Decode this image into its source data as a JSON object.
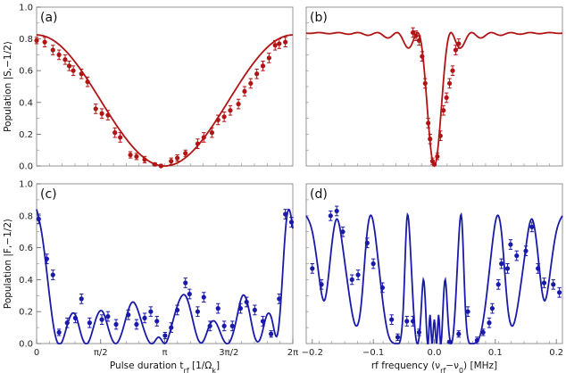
{
  "colors": {
    "red": "#b01414",
    "blue": "#1a1aa8"
  },
  "chart_data": [
    {
      "panel": "(a)",
      "type": "line",
      "ylim": [
        0.0,
        1.0
      ],
      "xlim": [
        0.0,
        6.2832
      ],
      "yticks": [
        {
          "v": 0.0,
          "label": "0.0"
        },
        {
          "v": 0.2,
          "label": "0.2"
        },
        {
          "v": 0.4,
          "label": "0.4"
        },
        {
          "v": 0.6,
          "label": "0.6"
        },
        {
          "v": 0.8,
          "label": "0.8"
        },
        {
          "v": 1.0,
          "label": "1.0"
        }
      ],
      "xticks": [],
      "ylabel": "Population  |S,−1/2⟩",
      "xlabel": "",
      "color": "red",
      "curve": {
        "model": "rabi_a",
        "steps": 200
      },
      "points": [
        {
          "x": 0.0,
          "y": 0.79,
          "e": 0.02
        },
        {
          "x": 0.2,
          "y": 0.78,
          "e": 0.03
        },
        {
          "x": 0.4,
          "y": 0.73,
          "e": 0.03
        },
        {
          "x": 0.55,
          "y": 0.7,
          "e": 0.03
        },
        {
          "x": 0.7,
          "y": 0.67,
          "e": 0.03
        },
        {
          "x": 0.8,
          "y": 0.63,
          "e": 0.03
        },
        {
          "x": 0.9,
          "y": 0.6,
          "e": 0.03
        },
        {
          "x": 1.1,
          "y": 0.58,
          "e": 0.03
        },
        {
          "x": 1.25,
          "y": 0.53,
          "e": 0.03
        },
        {
          "x": 1.45,
          "y": 0.36,
          "e": 0.03
        },
        {
          "x": 1.6,
          "y": 0.33,
          "e": 0.03
        },
        {
          "x": 1.75,
          "y": 0.32,
          "e": 0.03
        },
        {
          "x": 1.92,
          "y": 0.21,
          "e": 0.03
        },
        {
          "x": 2.05,
          "y": 0.18,
          "e": 0.03
        },
        {
          "x": 2.3,
          "y": 0.07,
          "e": 0.02
        },
        {
          "x": 2.45,
          "y": 0.06,
          "e": 0.02
        },
        {
          "x": 2.65,
          "y": 0.04,
          "e": 0.02
        },
        {
          "x": 2.9,
          "y": 0.01,
          "e": 0.01
        },
        {
          "x": 3.05,
          "y": 0.0,
          "e": 0.01
        },
        {
          "x": 3.3,
          "y": 0.03,
          "e": 0.02
        },
        {
          "x": 3.45,
          "y": 0.05,
          "e": 0.02
        },
        {
          "x": 3.65,
          "y": 0.08,
          "e": 0.02
        },
        {
          "x": 3.95,
          "y": 0.14,
          "e": 0.03
        },
        {
          "x": 4.1,
          "y": 0.18,
          "e": 0.03
        },
        {
          "x": 4.3,
          "y": 0.21,
          "e": 0.03
        },
        {
          "x": 4.45,
          "y": 0.29,
          "e": 0.03
        },
        {
          "x": 4.6,
          "y": 0.31,
          "e": 0.03
        },
        {
          "x": 4.75,
          "y": 0.35,
          "e": 0.03
        },
        {
          "x": 4.95,
          "y": 0.39,
          "e": 0.03
        },
        {
          "x": 5.1,
          "y": 0.47,
          "e": 0.03
        },
        {
          "x": 5.25,
          "y": 0.52,
          "e": 0.03
        },
        {
          "x": 5.4,
          "y": 0.58,
          "e": 0.03
        },
        {
          "x": 5.55,
          "y": 0.63,
          "e": 0.03
        },
        {
          "x": 5.7,
          "y": 0.68,
          "e": 0.03
        },
        {
          "x": 5.85,
          "y": 0.76,
          "e": 0.03
        },
        {
          "x": 5.95,
          "y": 0.77,
          "e": 0.03
        },
        {
          "x": 6.1,
          "y": 0.78,
          "e": 0.03
        }
      ]
    },
    {
      "panel": "(b)",
      "type": "line",
      "ylim": [
        0.0,
        1.0
      ],
      "xlim": [
        -0.21,
        0.21
      ],
      "yticks": [],
      "xticks": [],
      "ylabel": "",
      "xlabel": "",
      "color": "red",
      "curve": {
        "model": "rabi_b",
        "steps": 300
      },
      "points": [
        {
          "x": -0.035,
          "y": 0.84,
          "e": 0.03
        },
        {
          "x": -0.03,
          "y": 0.82,
          "e": 0.03
        },
        {
          "x": -0.025,
          "y": 0.79,
          "e": 0.03
        },
        {
          "x": -0.02,
          "y": 0.69,
          "e": 0.03
        },
        {
          "x": -0.015,
          "y": 0.52,
          "e": 0.03
        },
        {
          "x": -0.01,
          "y": 0.27,
          "e": 0.03
        },
        {
          "x": -0.007,
          "y": 0.17,
          "e": 0.03
        },
        {
          "x": -0.003,
          "y": 0.03,
          "e": 0.02
        },
        {
          "x": 0.0,
          "y": 0.01,
          "e": 0.01
        },
        {
          "x": 0.005,
          "y": 0.06,
          "e": 0.02
        },
        {
          "x": 0.01,
          "y": 0.19,
          "e": 0.03
        },
        {
          "x": 0.015,
          "y": 0.35,
          "e": 0.03
        },
        {
          "x": 0.02,
          "y": 0.43,
          "e": 0.03
        },
        {
          "x": 0.025,
          "y": 0.52,
          "e": 0.03
        },
        {
          "x": 0.03,
          "y": 0.6,
          "e": 0.03
        },
        {
          "x": 0.035,
          "y": 0.73,
          "e": 0.03
        },
        {
          "x": 0.04,
          "y": 0.77,
          "e": 0.03
        }
      ]
    },
    {
      "panel": "(c)",
      "type": "line",
      "ylim": [
        0.0,
        1.0
      ],
      "xlim": [
        0.0,
        6.2832
      ],
      "yticks": [
        {
          "v": 0.0,
          "label": "0.0"
        },
        {
          "v": 0.2,
          "label": "0.2"
        },
        {
          "v": 0.4,
          "label": "0.4"
        },
        {
          "v": 0.6,
          "label": "0.6"
        },
        {
          "v": 0.8,
          "label": "0.8"
        },
        {
          "v": 1.0,
          "label": "1.0"
        }
      ],
      "xticks": [
        {
          "v": 0.0,
          "label": "0"
        },
        {
          "v": 1.5708,
          "label": "π/2"
        },
        {
          "v": 3.1416,
          "label": "π"
        },
        {
          "v": 4.7124,
          "label": "3π/2"
        },
        {
          "v": 6.2832,
          "label": "2π"
        }
      ],
      "ylabel": "Population  |F,−1/2⟩",
      "xlabel": "Pulse duration t_rf [1/Ω_k]",
      "color": "blue",
      "curve": {
        "model": "spline_c",
        "steps": 300
      },
      "points": [
        {
          "x": 0.05,
          "y": 0.78,
          "e": 0.03
        },
        {
          "x": 0.25,
          "y": 0.53,
          "e": 0.03
        },
        {
          "x": 0.4,
          "y": 0.43,
          "e": 0.03
        },
        {
          "x": 0.55,
          "y": 0.07,
          "e": 0.02
        },
        {
          "x": 0.75,
          "y": 0.13,
          "e": 0.03
        },
        {
          "x": 0.95,
          "y": 0.16,
          "e": 0.03
        },
        {
          "x": 1.1,
          "y": 0.28,
          "e": 0.03
        },
        {
          "x": 1.3,
          "y": 0.13,
          "e": 0.03
        },
        {
          "x": 1.6,
          "y": 0.15,
          "e": 0.03
        },
        {
          "x": 1.75,
          "y": 0.17,
          "e": 0.03
        },
        {
          "x": 1.95,
          "y": 0.12,
          "e": 0.03
        },
        {
          "x": 2.25,
          "y": 0.18,
          "e": 0.03
        },
        {
          "x": 2.45,
          "y": 0.12,
          "e": 0.03
        },
        {
          "x": 2.65,
          "y": 0.16,
          "e": 0.03
        },
        {
          "x": 2.8,
          "y": 0.2,
          "e": 0.03
        },
        {
          "x": 2.95,
          "y": 0.14,
          "e": 0.03
        },
        {
          "x": 3.15,
          "y": 0.05,
          "e": 0.02
        },
        {
          "x": 3.3,
          "y": 0.1,
          "e": 0.03
        },
        {
          "x": 3.45,
          "y": 0.21,
          "e": 0.03
        },
        {
          "x": 3.65,
          "y": 0.38,
          "e": 0.03
        },
        {
          "x": 3.75,
          "y": 0.31,
          "e": 0.03
        },
        {
          "x": 3.95,
          "y": 0.2,
          "e": 0.03
        },
        {
          "x": 4.1,
          "y": 0.29,
          "e": 0.03
        },
        {
          "x": 4.25,
          "y": 0.11,
          "e": 0.03
        },
        {
          "x": 4.45,
          "y": 0.22,
          "e": 0.03
        },
        {
          "x": 4.6,
          "y": 0.11,
          "e": 0.03
        },
        {
          "x": 4.8,
          "y": 0.11,
          "e": 0.03
        },
        {
          "x": 5.0,
          "y": 0.22,
          "e": 0.03
        },
        {
          "x": 5.15,
          "y": 0.26,
          "e": 0.03
        },
        {
          "x": 5.35,
          "y": 0.21,
          "e": 0.03
        },
        {
          "x": 5.55,
          "y": 0.14,
          "e": 0.03
        },
        {
          "x": 5.75,
          "y": 0.06,
          "e": 0.02
        },
        {
          "x": 5.95,
          "y": 0.28,
          "e": 0.03
        },
        {
          "x": 6.1,
          "y": 0.81,
          "e": 0.03
        },
        {
          "x": 6.25,
          "y": 0.76,
          "e": 0.03
        }
      ]
    },
    {
      "panel": "(d)",
      "type": "line",
      "ylim": [
        0.0,
        1.0
      ],
      "xlim": [
        -0.21,
        0.21
      ],
      "yticks": [],
      "xticks": [
        {
          "v": -0.2,
          "label": "−0.2"
        },
        {
          "v": -0.1,
          "label": "−0.1"
        },
        {
          "v": 0.0,
          "label": "0.0"
        },
        {
          "v": 0.1,
          "label": "0.1"
        },
        {
          "v": 0.2,
          "label": "0.2"
        }
      ],
      "ylabel": "",
      "xlabel": "rf frequency (ν_rf−ν_0) [MHz]",
      "color": "blue",
      "curve": {
        "model": "spline_d",
        "steps": 420
      },
      "points": [
        {
          "x": -0.2,
          "y": 0.47,
          "e": 0.03
        },
        {
          "x": -0.185,
          "y": 0.37,
          "e": 0.03
        },
        {
          "x": -0.17,
          "y": 0.8,
          "e": 0.03
        },
        {
          "x": -0.16,
          "y": 0.83,
          "e": 0.03
        },
        {
          "x": -0.15,
          "y": 0.7,
          "e": 0.03
        },
        {
          "x": -0.135,
          "y": 0.4,
          "e": 0.03
        },
        {
          "x": -0.125,
          "y": 0.43,
          "e": 0.03
        },
        {
          "x": -0.11,
          "y": 0.63,
          "e": 0.03
        },
        {
          "x": -0.1,
          "y": 0.5,
          "e": 0.03
        },
        {
          "x": -0.085,
          "y": 0.35,
          "e": 0.03
        },
        {
          "x": -0.07,
          "y": 0.15,
          "e": 0.03
        },
        {
          "x": -0.06,
          "y": 0.04,
          "e": 0.02
        },
        {
          "x": -0.045,
          "y": 0.14,
          "e": 0.03
        },
        {
          "x": -0.035,
          "y": 0.14,
          "e": 0.03
        },
        {
          "x": -0.025,
          "y": 0.07,
          "e": 0.02
        },
        {
          "x": 0.025,
          "y": 0.01,
          "e": 0.01
        },
        {
          "x": 0.04,
          "y": 0.06,
          "e": 0.02
        },
        {
          "x": 0.055,
          "y": 0.2,
          "e": 0.03
        },
        {
          "x": 0.07,
          "y": 0.02,
          "e": 0.02
        },
        {
          "x": 0.08,
          "y": 0.07,
          "e": 0.02
        },
        {
          "x": 0.09,
          "y": 0.13,
          "e": 0.03
        },
        {
          "x": 0.095,
          "y": 0.22,
          "e": 0.03
        },
        {
          "x": 0.105,
          "y": 0.37,
          "e": 0.03
        },
        {
          "x": 0.11,
          "y": 0.5,
          "e": 0.03
        },
        {
          "x": 0.12,
          "y": 0.47,
          "e": 0.03
        },
        {
          "x": 0.125,
          "y": 0.62,
          "e": 0.03
        },
        {
          "x": 0.135,
          "y": 0.55,
          "e": 0.03
        },
        {
          "x": 0.15,
          "y": 0.58,
          "e": 0.03
        },
        {
          "x": 0.16,
          "y": 0.73,
          "e": 0.03
        },
        {
          "x": 0.17,
          "y": 0.47,
          "e": 0.03
        },
        {
          "x": 0.18,
          "y": 0.38,
          "e": 0.03
        },
        {
          "x": 0.195,
          "y": 0.37,
          "e": 0.03
        },
        {
          "x": 0.205,
          "y": 0.32,
          "e": 0.03
        }
      ]
    }
  ]
}
